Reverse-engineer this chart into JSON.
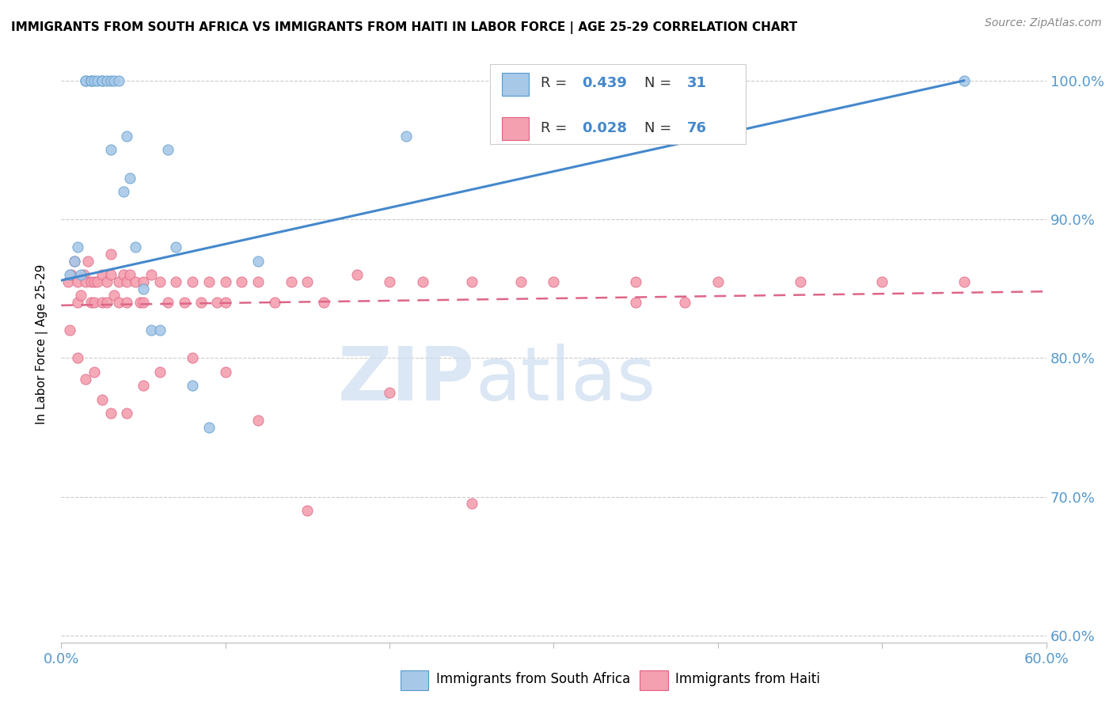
{
  "title": "IMMIGRANTS FROM SOUTH AFRICA VS IMMIGRANTS FROM HAITI IN LABOR FORCE | AGE 25-29 CORRELATION CHART",
  "source": "Source: ZipAtlas.com",
  "ylabel": "In Labor Force | Age 25-29",
  "xlim": [
    0.0,
    0.6
  ],
  "ylim": [
    0.595,
    1.025
  ],
  "ytick_labels": [
    "60.0%",
    "70.0%",
    "80.0%",
    "90.0%",
    "100.0%"
  ],
  "ytick_values": [
    0.6,
    0.7,
    0.8,
    0.9,
    1.0
  ],
  "xtick_vals": [
    0.0,
    0.1,
    0.2,
    0.3,
    0.4,
    0.5,
    0.6
  ],
  "legend_r_blue": "R = 0.439",
  "legend_n_blue": "N = 31",
  "legend_r_pink": "R = 0.028",
  "legend_n_pink": "N = 76",
  "blue_fill": "#a8c8e8",
  "blue_edge": "#5599cc",
  "pink_fill": "#f4a0b0",
  "pink_edge": "#e06080",
  "blue_line": "#4488cc",
  "pink_line": "#dd6688",
  "legend_color": "#4488cc",
  "watermark_color": "#ccddf0",
  "south_africa_x": [
    0.005,
    0.008,
    0.01,
    0.012,
    0.015,
    0.015,
    0.018,
    0.018,
    0.02,
    0.022,
    0.025,
    0.025,
    0.028,
    0.03,
    0.03,
    0.032,
    0.035,
    0.038,
    0.04,
    0.042,
    0.045,
    0.05,
    0.055,
    0.06,
    0.065,
    0.07,
    0.08,
    0.09,
    0.12,
    0.21,
    0.55
  ],
  "south_africa_y": [
    0.86,
    0.87,
    0.88,
    0.86,
    1.0,
    1.0,
    1.0,
    1.0,
    1.0,
    1.0,
    1.0,
    1.0,
    1.0,
    1.0,
    0.95,
    1.0,
    1.0,
    0.92,
    0.96,
    0.93,
    0.88,
    0.85,
    0.82,
    0.82,
    0.95,
    0.88,
    0.78,
    0.75,
    0.87,
    0.96,
    1.0
  ],
  "haiti_x": [
    0.004,
    0.006,
    0.008,
    0.01,
    0.01,
    0.012,
    0.014,
    0.015,
    0.016,
    0.018,
    0.018,
    0.02,
    0.02,
    0.022,
    0.025,
    0.025,
    0.028,
    0.028,
    0.03,
    0.03,
    0.032,
    0.035,
    0.035,
    0.038,
    0.04,
    0.04,
    0.042,
    0.045,
    0.048,
    0.05,
    0.05,
    0.055,
    0.06,
    0.065,
    0.07,
    0.075,
    0.08,
    0.085,
    0.09,
    0.095,
    0.1,
    0.1,
    0.11,
    0.12,
    0.13,
    0.14,
    0.15,
    0.16,
    0.18,
    0.2,
    0.22,
    0.25,
    0.28,
    0.3,
    0.35,
    0.38,
    0.4,
    0.45,
    0.5,
    0.55,
    0.005,
    0.01,
    0.015,
    0.02,
    0.025,
    0.03,
    0.04,
    0.05,
    0.06,
    0.08,
    0.1,
    0.12,
    0.15,
    0.2,
    0.25,
    0.35
  ],
  "haiti_y": [
    0.855,
    0.86,
    0.87,
    0.855,
    0.84,
    0.845,
    0.86,
    0.855,
    0.87,
    0.855,
    0.84,
    0.855,
    0.84,
    0.855,
    0.84,
    0.86,
    0.855,
    0.84,
    0.86,
    0.875,
    0.845,
    0.855,
    0.84,
    0.86,
    0.855,
    0.84,
    0.86,
    0.855,
    0.84,
    0.855,
    0.84,
    0.86,
    0.855,
    0.84,
    0.855,
    0.84,
    0.855,
    0.84,
    0.855,
    0.84,
    0.855,
    0.84,
    0.855,
    0.855,
    0.84,
    0.855,
    0.855,
    0.84,
    0.86,
    0.855,
    0.855,
    0.855,
    0.855,
    0.855,
    0.855,
    0.84,
    0.855,
    0.855,
    0.855,
    0.855,
    0.82,
    0.8,
    0.785,
    0.79,
    0.77,
    0.76,
    0.76,
    0.78,
    0.79,
    0.8,
    0.79,
    0.755,
    0.69,
    0.775,
    0.695,
    0.84
  ],
  "blue_line_x": [
    0.0,
    0.55
  ],
  "blue_line_y": [
    0.856,
    1.0
  ],
  "pink_line_x": [
    0.0,
    0.6
  ],
  "pink_line_y": [
    0.838,
    0.848
  ]
}
